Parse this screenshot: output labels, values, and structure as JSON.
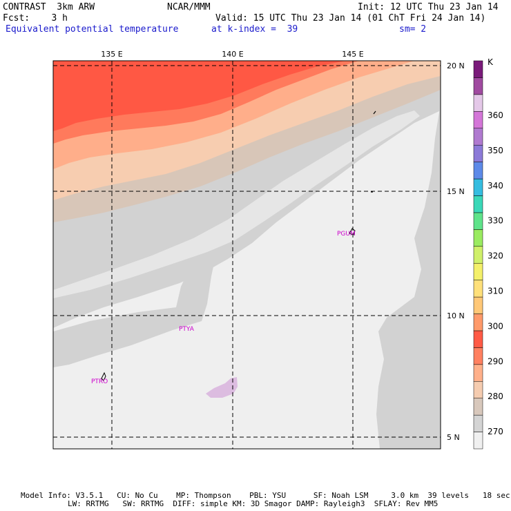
{
  "header": {
    "model": "CONTRAST  3km ARW",
    "org": "NCAR/MMM",
    "init": "Init: 12 UTC Thu 23 Jan 14",
    "fcst": "Fcst:    3 h",
    "valid": "Valid: 15 UTC Thu 23 Jan 14 (01 ChT Fri 24 Jan 14)",
    "field": "Equivalent potential temperature",
    "level": "at k-index =  39",
    "smooth": "sm= 2"
  },
  "map": {
    "lon_labels": [
      "135 E",
      "140 E",
      "145 E"
    ],
    "lat_labels": [
      "20 N",
      "15 N",
      "10 N",
      "5 N"
    ],
    "stations": [
      "PGUM",
      "PTYA",
      "PTRO"
    ]
  },
  "colorbar": {
    "unit": "K",
    "labels": [
      "360",
      "350",
      "340",
      "330",
      "320",
      "310",
      "300",
      "290",
      "280",
      "270"
    ],
    "colors": [
      "#f0f0f0",
      "#d4d4d4",
      "#d8c8bc",
      "#f5ccb0",
      "#ffb08a",
      "#ff8060",
      "#ff5a45",
      "#ff9a6a",
      "#ffc877",
      "#ffe07a",
      "#f4f06a",
      "#d0f06a",
      "#9aeb60",
      "#5fe38a",
      "#3ad8b8",
      "#35bde0",
      "#5d8ae8",
      "#8c7ad8",
      "#b07ad0",
      "#d476d8",
      "#e4c8e8",
      "#a04aa0",
      "#7a1a7a"
    ]
  },
  "footer": {
    "line1": "Model Info: V3.5.1   CU: No Cu    MP: Thompson    PBL: YSU      SF: Noah LSM     3.0 km  39 levels   18 sec",
    "line2": "LW: RRTMG   SW: RRTMG  DIFF: simple KM: 3D Smagor DAMP: Rayleigh3  SFLAY: Rev MM5"
  }
}
